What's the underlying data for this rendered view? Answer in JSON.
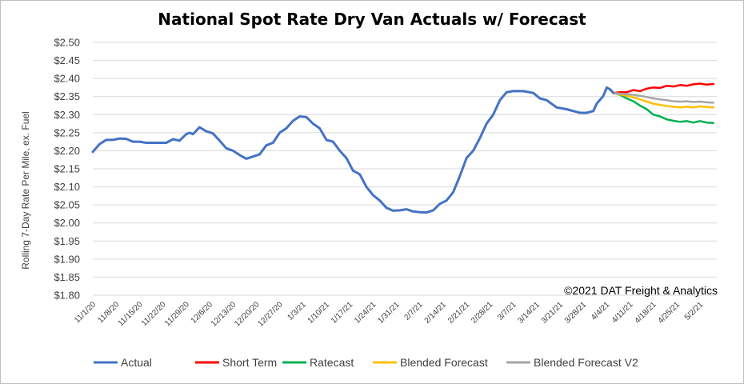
{
  "chart_data": {
    "type": "line",
    "title": "National Spot Rate Dry Van Actuals w/ Forecast",
    "ylabel": "Rolling 7-Day Rate Per Mile, ex. Fuel",
    "xlabel": "",
    "ylim": [
      1.8,
      2.5
    ],
    "y_ticks": [
      "$2.50",
      "$2.45",
      "$2.40",
      "$2.35",
      "$2.30",
      "$2.25",
      "$2.20",
      "$2.15",
      "$2.10",
      "$2.05",
      "$2.00",
      "$1.95",
      "$1.90",
      "$1.85",
      "$1.80"
    ],
    "x_ticks": [
      "11/1/20",
      "11/8/20",
      "11/15/20",
      "11/22/20",
      "11/29/20",
      "12/6/20",
      "12/13/20",
      "12/20/20",
      "12/27/20",
      "1/3/21",
      "1/10/21",
      "1/17/21",
      "1/24/21",
      "1/31/21",
      "2/7/21",
      "2/14/21",
      "2/21/21",
      "2/28/21",
      "3/7/21",
      "3/14/21",
      "3/21/21",
      "3/28/21",
      "4/4/21",
      "4/11/21",
      "4/18/21",
      "4/25/21",
      "5/2/21"
    ],
    "grid": true,
    "legend_position": "bottom",
    "annotation": "©2021 DAT Freight & Analytics",
    "series": [
      {
        "name": "Actual",
        "color": "#4472c4",
        "points": [
          [
            "11/1/20",
            2.197
          ],
          [
            "11/3/20",
            2.218
          ],
          [
            "11/5/20",
            2.23
          ],
          [
            "11/7/20",
            2.23
          ],
          [
            "11/9/20",
            2.234
          ],
          [
            "11/11/20",
            2.233
          ],
          [
            "11/13/20",
            2.225
          ],
          [
            "11/15/20",
            2.225
          ],
          [
            "11/17/20",
            2.222
          ],
          [
            "11/20/20",
            2.222
          ],
          [
            "11/23/20",
            2.222
          ],
          [
            "11/25/20",
            2.232
          ],
          [
            "11/27/20",
            2.228
          ],
          [
            "11/29/20",
            2.246
          ],
          [
            "11/30/20",
            2.25
          ],
          [
            "12/1/20",
            2.246
          ],
          [
            "12/3/20",
            2.265
          ],
          [
            "12/5/20",
            2.254
          ],
          [
            "12/7/20",
            2.248
          ],
          [
            "12/9/20",
            2.228
          ],
          [
            "12/11/20",
            2.207
          ],
          [
            "12/13/20",
            2.2
          ],
          [
            "12/15/20",
            2.188
          ],
          [
            "12/17/20",
            2.178
          ],
          [
            "12/19/20",
            2.184
          ],
          [
            "12/21/20",
            2.19
          ],
          [
            "12/23/20",
            2.215
          ],
          [
            "12/25/20",
            2.222
          ],
          [
            "12/27/20",
            2.25
          ],
          [
            "12/29/20",
            2.262
          ],
          [
            "12/31/20",
            2.283
          ],
          [
            "1/2/21",
            2.295
          ],
          [
            "1/4/21",
            2.293
          ],
          [
            "1/6/21",
            2.275
          ],
          [
            "1/8/21",
            2.262
          ],
          [
            "1/10/21",
            2.23
          ],
          [
            "1/12/21",
            2.225
          ],
          [
            "1/14/21",
            2.2
          ],
          [
            "1/16/21",
            2.18
          ],
          [
            "1/18/21",
            2.145
          ],
          [
            "1/20/21",
            2.135
          ],
          [
            "1/22/21",
            2.1
          ],
          [
            "1/24/21",
            2.077
          ],
          [
            "1/26/21",
            2.062
          ],
          [
            "1/28/21",
            2.042
          ],
          [
            "1/30/21",
            2.034
          ],
          [
            "2/1/21",
            2.035
          ],
          [
            "2/3/21",
            2.038
          ],
          [
            "2/5/21",
            2.032
          ],
          [
            "2/7/21",
            2.03
          ],
          [
            "2/9/21",
            2.029
          ],
          [
            "2/11/21",
            2.035
          ],
          [
            "2/13/21",
            2.053
          ],
          [
            "2/15/21",
            2.062
          ],
          [
            "2/17/21",
            2.085
          ],
          [
            "2/19/21",
            2.13
          ],
          [
            "2/21/21",
            2.18
          ],
          [
            "2/23/21",
            2.2
          ],
          [
            "2/25/21",
            2.235
          ],
          [
            "2/27/21",
            2.275
          ],
          [
            "3/1/21",
            2.3
          ],
          [
            "3/3/21",
            2.34
          ],
          [
            "3/5/21",
            2.362
          ],
          [
            "3/7/21",
            2.365
          ],
          [
            "3/10/21",
            2.365
          ],
          [
            "3/13/21",
            2.36
          ],
          [
            "3/15/21",
            2.345
          ],
          [
            "3/17/21",
            2.34
          ],
          [
            "3/20/21",
            2.32
          ],
          [
            "3/23/21",
            2.315
          ],
          [
            "3/25/21",
            2.31
          ],
          [
            "3/27/21",
            2.305
          ],
          [
            "3/29/21",
            2.305
          ],
          [
            "3/31/21",
            2.31
          ],
          [
            "4/1/21",
            2.33
          ],
          [
            "4/3/21",
            2.352
          ],
          [
            "4/4/21",
            2.375
          ],
          [
            "4/5/21",
            2.37
          ],
          [
            "4/6/21",
            2.36
          ]
        ]
      },
      {
        "name": "Short Term",
        "color": "#ff0000",
        "points": [
          [
            "4/6/21",
            2.36
          ],
          [
            "4/8/21",
            2.362
          ],
          [
            "4/10/21",
            2.362
          ],
          [
            "4/12/21",
            2.368
          ],
          [
            "4/14/21",
            2.365
          ],
          [
            "4/16/21",
            2.372
          ],
          [
            "4/18/21",
            2.375
          ],
          [
            "4/20/21",
            2.374
          ],
          [
            "4/22/21",
            2.38
          ],
          [
            "4/24/21",
            2.378
          ],
          [
            "4/26/21",
            2.382
          ],
          [
            "4/28/21",
            2.38
          ],
          [
            "4/30/21",
            2.384
          ],
          [
            "5/2/21",
            2.386
          ],
          [
            "5/4/21",
            2.383
          ],
          [
            "5/6/21",
            2.385
          ]
        ]
      },
      {
        "name": "Ratecast",
        "color": "#00b050",
        "points": [
          [
            "4/6/21",
            2.36
          ],
          [
            "4/8/21",
            2.355
          ],
          [
            "4/10/21",
            2.345
          ],
          [
            "4/12/21",
            2.337
          ],
          [
            "4/14/21",
            2.325
          ],
          [
            "4/16/21",
            2.315
          ],
          [
            "4/18/21",
            2.3
          ],
          [
            "4/20/21",
            2.295
          ],
          [
            "4/22/21",
            2.287
          ],
          [
            "4/24/21",
            2.283
          ],
          [
            "4/26/21",
            2.28
          ],
          [
            "4/28/21",
            2.282
          ],
          [
            "4/30/21",
            2.278
          ],
          [
            "5/2/21",
            2.282
          ],
          [
            "5/4/21",
            2.278
          ],
          [
            "5/6/21",
            2.277
          ]
        ]
      },
      {
        "name": "Blended Forecast",
        "color": "#ffc000",
        "points": [
          [
            "4/6/21",
            2.36
          ],
          [
            "4/8/21",
            2.356
          ],
          [
            "4/10/21",
            2.352
          ],
          [
            "4/12/21",
            2.348
          ],
          [
            "4/14/21",
            2.342
          ],
          [
            "4/16/21",
            2.336
          ],
          [
            "4/18/21",
            2.33
          ],
          [
            "4/20/21",
            2.327
          ],
          [
            "4/22/21",
            2.324
          ],
          [
            "4/24/21",
            2.322
          ],
          [
            "4/26/21",
            2.32
          ],
          [
            "4/28/21",
            2.322
          ],
          [
            "4/30/21",
            2.32
          ],
          [
            "5/2/21",
            2.323
          ],
          [
            "5/4/21",
            2.321
          ],
          [
            "5/6/21",
            2.32
          ]
        ]
      },
      {
        "name": "Blended Forecast V2",
        "color": "#a5a5a5",
        "points": [
          [
            "4/6/21",
            2.36
          ],
          [
            "4/8/21",
            2.358
          ],
          [
            "4/10/21",
            2.357
          ],
          [
            "4/12/21",
            2.355
          ],
          [
            "4/14/21",
            2.352
          ],
          [
            "4/16/21",
            2.349
          ],
          [
            "4/18/21",
            2.345
          ],
          [
            "4/20/21",
            2.342
          ],
          [
            "4/22/21",
            2.34
          ],
          [
            "4/24/21",
            2.337
          ],
          [
            "4/26/21",
            2.336
          ],
          [
            "4/28/21",
            2.337
          ],
          [
            "4/30/21",
            2.335
          ],
          [
            "5/2/21",
            2.336
          ],
          [
            "5/4/21",
            2.334
          ],
          [
            "5/6/21",
            2.333
          ]
        ]
      }
    ]
  }
}
